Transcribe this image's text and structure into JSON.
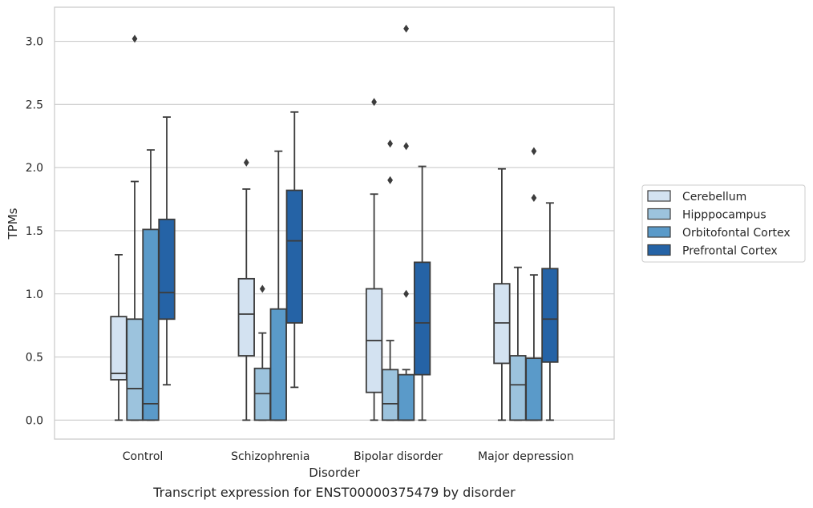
{
  "caption": "Transcript expression for ENST00000375479 by disorder",
  "chart_data": {
    "type": "box",
    "xlabel": "Disorder",
    "ylabel": "TPMs",
    "ylim": [
      -0.15,
      3.27
    ],
    "yticks": [
      0.0,
      0.5,
      1.0,
      1.5,
      2.0,
      2.5,
      3.0
    ],
    "ytick_labels": [
      "0.0",
      "0.5",
      "1.0",
      "1.5",
      "2.0",
      "2.5",
      "3.0"
    ],
    "grid": "horizontal",
    "legend_position": "right",
    "categories": [
      "Control",
      "Schizophrenia",
      "Bipolar disorder",
      "Major depression"
    ],
    "series": [
      {
        "name": "Cerebellum",
        "color": "#d3e2f1",
        "boxes": [
          {
            "whisker_low": 0.0,
            "q1": 0.32,
            "median": 0.37,
            "q3": 0.82,
            "whisker_high": 1.31,
            "outliers": []
          },
          {
            "whisker_low": 0.0,
            "q1": 0.51,
            "median": 0.84,
            "q3": 1.12,
            "whisker_high": 1.83,
            "outliers": [
              2.04
            ]
          },
          {
            "whisker_low": 0.0,
            "q1": 0.22,
            "median": 0.63,
            "q3": 1.04,
            "whisker_high": 1.79,
            "outliers": [
              2.52
            ]
          },
          {
            "whisker_low": 0.0,
            "q1": 0.45,
            "median": 0.77,
            "q3": 1.08,
            "whisker_high": 1.99,
            "outliers": []
          }
        ]
      },
      {
        "name": "Hipppocampus",
        "color": "#9cc3dd",
        "boxes": [
          {
            "whisker_low": 0.0,
            "q1": 0.0,
            "median": 0.25,
            "q3": 0.8,
            "whisker_high": 1.89,
            "outliers": [
              3.02
            ]
          },
          {
            "whisker_low": 0.0,
            "q1": 0.0,
            "median": 0.21,
            "q3": 0.41,
            "whisker_high": 0.69,
            "outliers": [
              1.04
            ]
          },
          {
            "whisker_low": 0.0,
            "q1": 0.0,
            "median": 0.13,
            "q3": 0.4,
            "whisker_high": 0.63,
            "outliers": [
              1.9,
              2.19
            ]
          },
          {
            "whisker_low": 0.0,
            "q1": 0.0,
            "median": 0.28,
            "q3": 0.51,
            "whisker_high": 1.21,
            "outliers": []
          }
        ]
      },
      {
        "name": "Orbitofontal Cortex",
        "color": "#5a9ac9",
        "boxes": [
          {
            "whisker_low": 0.0,
            "q1": 0.0,
            "median": 0.13,
            "q3": 1.51,
            "whisker_high": 2.14,
            "outliers": []
          },
          {
            "whisker_low": 0.0,
            "q1": 0.0,
            "median": 0.0,
            "q3": 0.88,
            "whisker_high": 2.13,
            "outliers": []
          },
          {
            "whisker_low": 0.0,
            "q1": 0.0,
            "median": 0.0,
            "q3": 0.36,
            "whisker_high": 0.4,
            "outliers": [
              1.0,
              2.17,
              3.1
            ]
          },
          {
            "whisker_low": 0.0,
            "q1": 0.0,
            "median": 0.0,
            "q3": 0.49,
            "whisker_high": 1.15,
            "outliers": [
              1.76,
              2.13
            ]
          }
        ]
      },
      {
        "name": "Prefrontal Cortex",
        "color": "#2563a6",
        "boxes": [
          {
            "whisker_low": 0.28,
            "q1": 0.8,
            "median": 1.01,
            "q3": 1.59,
            "whisker_high": 2.4,
            "outliers": []
          },
          {
            "whisker_low": 0.26,
            "q1": 0.77,
            "median": 1.42,
            "q3": 1.82,
            "whisker_high": 2.44,
            "outliers": []
          },
          {
            "whisker_low": 0.0,
            "q1": 0.36,
            "median": 0.77,
            "q3": 1.25,
            "whisker_high": 2.01,
            "outliers": []
          },
          {
            "whisker_low": 0.0,
            "q1": 0.46,
            "median": 0.8,
            "q3": 1.2,
            "whisker_high": 1.72,
            "outliers": []
          }
        ]
      }
    ]
  }
}
